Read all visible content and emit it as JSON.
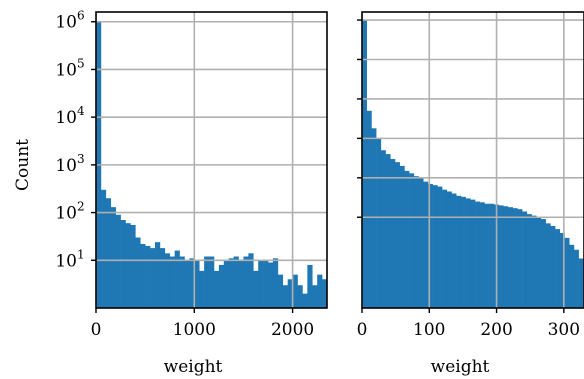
{
  "chart_data": [
    {
      "type": "bar",
      "subtype": "histogram",
      "xlabel": "weight",
      "ylabel": "Count",
      "yscale": "log",
      "xlim": [
        0,
        2350
      ],
      "ylim": [
        1,
        1600000
      ],
      "xticks": [
        0,
        1000,
        2000
      ],
      "xtick_labels": [
        "0",
        "1000",
        "2000"
      ],
      "yticks": [
        10,
        100,
        1000,
        10000,
        100000,
        1000000
      ],
      "ytick_base": "10",
      "ytick_exponents": [
        "1",
        "2",
        "3",
        "4",
        "5",
        "6"
      ],
      "grid": true,
      "color": "#1f77b4",
      "bin_width": 50,
      "counts": [
        1000000,
        300,
        200,
        130,
        90,
        70,
        60,
        55,
        30,
        22,
        20,
        18,
        24,
        18,
        14,
        12,
        16,
        12,
        10,
        11,
        10,
        6,
        12,
        12,
        6,
        8,
        10,
        11,
        12,
        10,
        12,
        14,
        6,
        10,
        10,
        9,
        11,
        5,
        3,
        4,
        5,
        3,
        2,
        8,
        3,
        5,
        4
      ]
    },
    {
      "type": "bar",
      "subtype": "histogram",
      "xlabel": "weight",
      "ylabel": "",
      "yscale": "log",
      "xlim": [
        0,
        330
      ],
      "ylim": [
        0.05,
        1600000
      ],
      "xticks": [
        0,
        100,
        200,
        300
      ],
      "xtick_labels": [
        "0",
        "100",
        "200",
        "300"
      ],
      "grid": true,
      "color": "#1f77b4",
      "bin_width": 7,
      "counts": [
        1000000,
        5000,
        1800,
        1000,
        500,
        400,
        300,
        250,
        200,
        150,
        130,
        110,
        100,
        80,
        70,
        65,
        60,
        50,
        45,
        40,
        35,
        33,
        30,
        28,
        25,
        24,
        22,
        22,
        21,
        20,
        19,
        18,
        17,
        16,
        14,
        12,
        11,
        10,
        9,
        7,
        6,
        5,
        4,
        3,
        2,
        1.5,
        0.9,
        0.5
      ]
    }
  ]
}
